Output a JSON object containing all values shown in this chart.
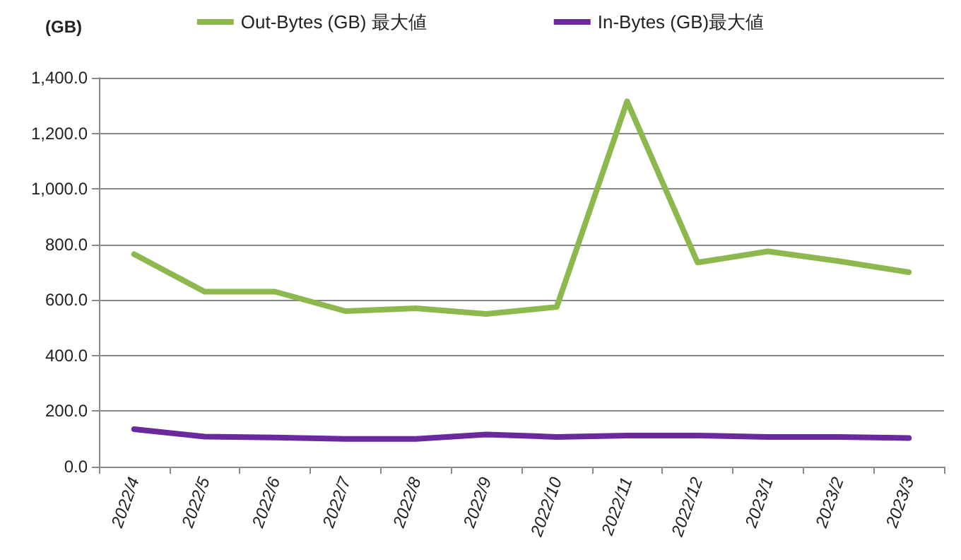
{
  "chart_data": {
    "type": "line",
    "ylabel": "(GB)",
    "categories": [
      "2022/4",
      "2022/5",
      "2022/6",
      "2022/7",
      "2022/8",
      "2022/9",
      "2022/10",
      "2022/11",
      "2022/12",
      "2023/1",
      "2023/2",
      "2023/3"
    ],
    "series": [
      {
        "name": "Out-Bytes (GB) 最大値",
        "color": "#8cb84e",
        "values": [
          765,
          630,
          630,
          560,
          570,
          550,
          575,
          1315,
          735,
          775,
          740,
          700
        ]
      },
      {
        "name": "In-Bytes (GB)最大値",
        "color": "#6a2a9e",
        "values": [
          135,
          108,
          105,
          100,
          100,
          116,
          107,
          112,
          112,
          107,
          107,
          103
        ]
      }
    ],
    "ylim": [
      0,
      1400
    ],
    "yticks": [
      {
        "value": 0,
        "label": "0.0"
      },
      {
        "value": 200,
        "label": "200.0"
      },
      {
        "value": 400,
        "label": "400.0"
      },
      {
        "value": 600,
        "label": "600.0"
      },
      {
        "value": 800,
        "label": "800.0"
      },
      {
        "value": 1000,
        "label": "1,000.0"
      },
      {
        "value": 1200,
        "label": "1,200.0"
      },
      {
        "value": 1400,
        "label": "1,400.0"
      }
    ],
    "grid": "y",
    "legend": "top",
    "marker": "none",
    "line_style": "solid"
  }
}
